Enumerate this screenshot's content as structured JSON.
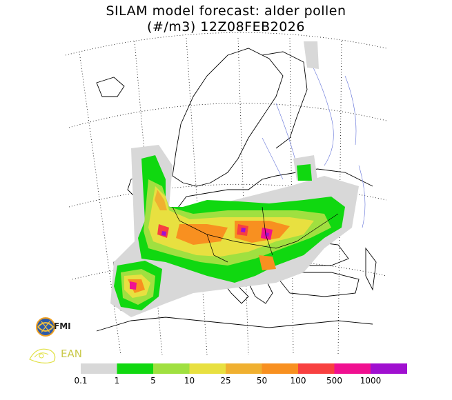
{
  "title": {
    "line1": "SILAM model forecast: alder pollen",
    "line2": "(#/m3) 12Z08FEB2026"
  },
  "logos": {
    "fmi": "FMI",
    "ean": "EAN"
  },
  "legend": {
    "labels": [
      "0.1",
      "1",
      "5",
      "10",
      "25",
      "50",
      "100",
      "500",
      "1000"
    ],
    "colors": [
      "#d8d8d8",
      "#10d810",
      "#a0e040",
      "#e8e040",
      "#f0b030",
      "#f89020",
      "#f84040",
      "#f01090",
      "#a010d0"
    ]
  }
}
